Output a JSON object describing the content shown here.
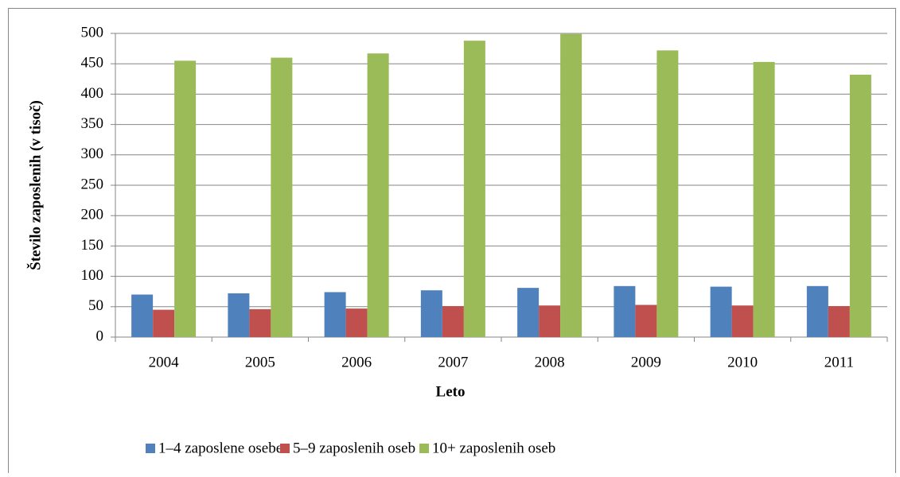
{
  "chart_data": {
    "type": "bar",
    "xlabel": "Leto",
    "ylabel": "Število zaposlenih (v tisoč)",
    "categories": [
      "2004",
      "2005",
      "2006",
      "2007",
      "2008",
      "2009",
      "2010",
      "2011"
    ],
    "series": [
      {
        "name": "1–4 zaposlene osebe",
        "color": "#4f81bd",
        "values": [
          70,
          72,
          74,
          77,
          81,
          84,
          83,
          84
        ]
      },
      {
        "name": "5–9 zaposlenih oseb",
        "color": "#c0504d",
        "values": [
          45,
          46,
          47,
          51,
          52,
          53,
          52,
          51
        ]
      },
      {
        "name": "10+ zaposlenih oseb",
        "color": "#9bbb59",
        "values": [
          455,
          460,
          467,
          488,
          499,
          472,
          453,
          432
        ]
      }
    ],
    "ylim": [
      0,
      500
    ],
    "yticks": [
      0,
      50,
      100,
      150,
      200,
      250,
      300,
      350,
      400,
      450,
      500
    ],
    "grid": true,
    "legend": "bottom"
  }
}
